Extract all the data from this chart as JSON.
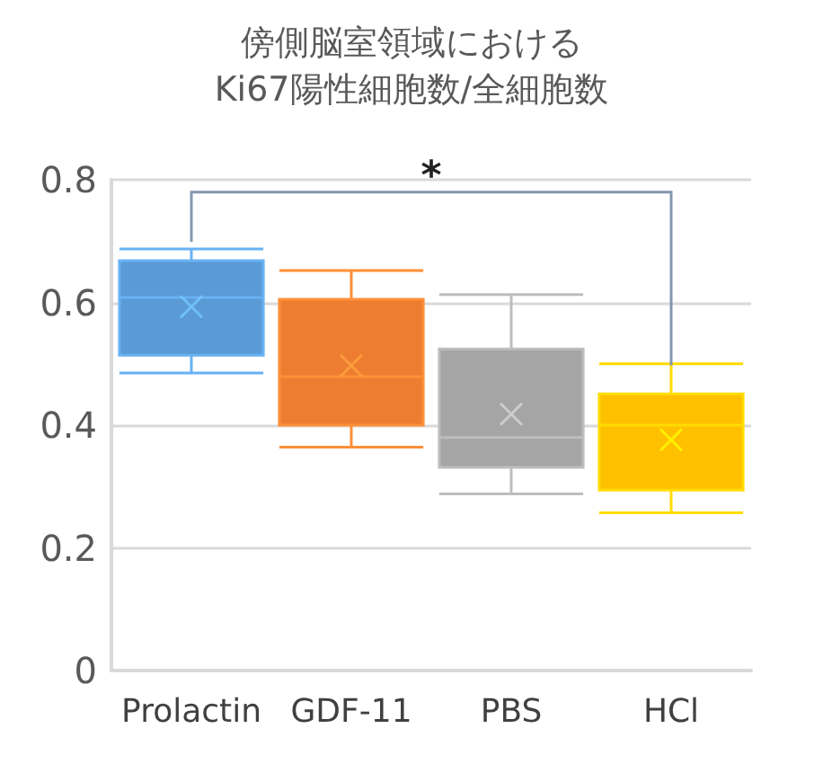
{
  "chart_data": {
    "type": "box",
    "title": "傍側脳室領域における\nKi67陽性細胞数/全細胞数",
    "categories": [
      "Prolactin",
      "GDF-11",
      "PBS",
      "HCl"
    ],
    "colors": [
      "#5b9bd5",
      "#ed7d31",
      "#a5a5a5",
      "#ffc000"
    ],
    "boxes": [
      {
        "low": 0.485,
        "q1": 0.514,
        "median": 0.608,
        "q3": 0.668,
        "high": 0.687,
        "mean": 0.593
      },
      {
        "low": 0.364,
        "q1": 0.4,
        "median": 0.479,
        "q3": 0.605,
        "high": 0.652,
        "mean": 0.497
      },
      {
        "low": 0.288,
        "q1": 0.331,
        "median": 0.38,
        "q3": 0.524,
        "high": 0.613,
        "mean": 0.418
      },
      {
        "low": 0.257,
        "q1": 0.294,
        "median": 0.4,
        "q3": 0.451,
        "high": 0.5,
        "mean": 0.376
      }
    ],
    "ylim": [
      0,
      0.8
    ],
    "yticks": [
      0,
      0.2,
      0.4,
      0.6,
      0.8
    ],
    "grid": "y",
    "annotations": [
      "*"
    ]
  }
}
